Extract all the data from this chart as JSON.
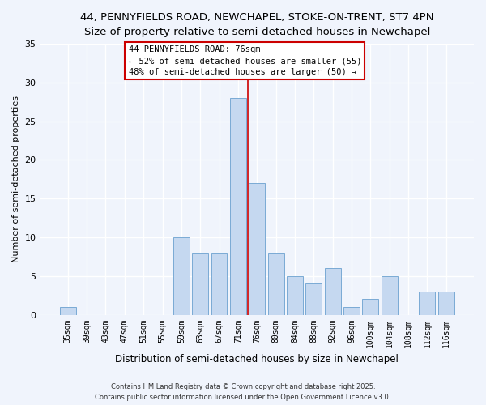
{
  "title_line1": "44, PENNYFIELDS ROAD, NEWCHAPEL, STOKE-ON-TRENT, ST7 4PN",
  "title_line2": "Size of property relative to semi-detached houses in Newchapel",
  "xlabel": "Distribution of semi-detached houses by size in Newchapel",
  "ylabel": "Number of semi-detached properties",
  "categories": [
    "35sqm",
    "39sqm",
    "43sqm",
    "47sqm",
    "51sqm",
    "55sqm",
    "59sqm",
    "63sqm",
    "67sqm",
    "71sqm",
    "76sqm",
    "80sqm",
    "84sqm",
    "88sqm",
    "92sqm",
    "96sqm",
    "100sqm",
    "104sqm",
    "108sqm",
    "112sqm",
    "116sqm"
  ],
  "values": [
    1,
    0,
    0,
    0,
    0,
    0,
    10,
    8,
    8,
    28,
    17,
    8,
    5,
    4,
    6,
    1,
    2,
    5,
    0,
    3,
    3
  ],
  "bar_color": "#c5d8f0",
  "bar_edge_color": "#7aaad4",
  "highlight_index": 10,
  "highlight_line_color": "#cc0000",
  "ylim": [
    0,
    35
  ],
  "yticks": [
    0,
    5,
    10,
    15,
    20,
    25,
    30,
    35
  ],
  "annotation_line1": "44 PENNYFIELDS ROAD: 76sqm",
  "annotation_line2": "← 52% of semi-detached houses are smaller (55)",
  "annotation_line3": "48% of semi-detached houses are larger (50) →",
  "annotation_box_color": "#ffffff",
  "annotation_box_edge": "#cc0000",
  "footer_line1": "Contains HM Land Registry data © Crown copyright and database right 2025.",
  "footer_line2": "Contains public sector information licensed under the Open Government Licence v3.0.",
  "background_color": "#f0f4fc",
  "grid_color": "#ffffff",
  "title_fontsize": 9.5,
  "subtitle_fontsize": 8.5,
  "annotation_fontsize": 7.5,
  "footer_fontsize": 6.0
}
